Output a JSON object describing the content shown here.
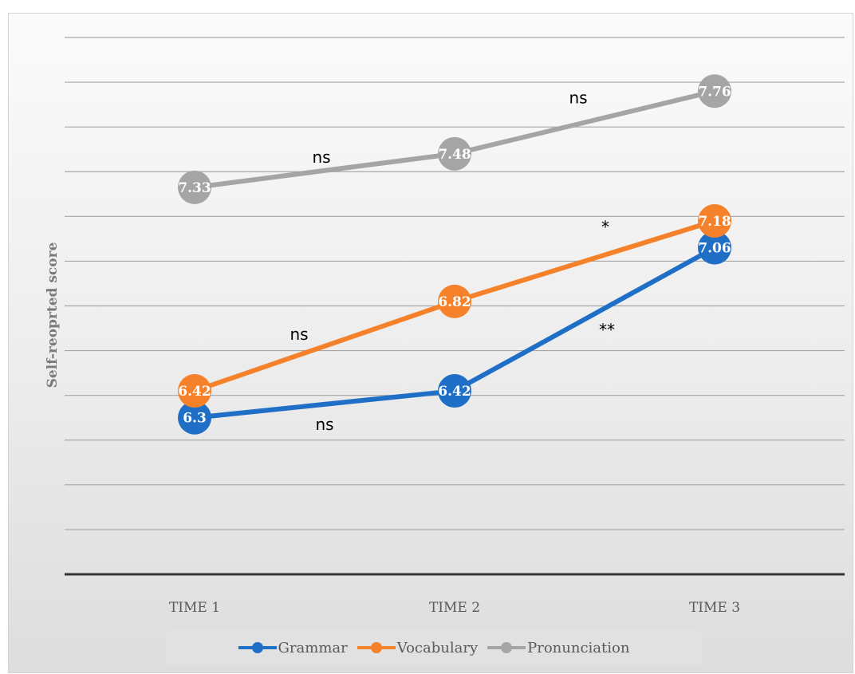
{
  "chart_data": {
    "type": "line",
    "categories": [
      "TIME 1",
      "TIME 2",
      "TIME 3"
    ],
    "series": [
      {
        "name": "Grammar",
        "color": "#1f6fc7",
        "values": [
          6.3,
          6.42,
          7.06
        ],
        "labels": [
          "6.3",
          "6.42",
          "7.06"
        ]
      },
      {
        "name": "Vocabulary",
        "color": "#f5822a",
        "values": [
          6.42,
          6.82,
          7.18
        ],
        "labels": [
          "6.42",
          "6.82",
          "7.18"
        ]
      },
      {
        "name": "Pronunciation",
        "color": "#a5a5a5",
        "values": [
          7.33,
          7.48,
          7.76
        ],
        "labels": [
          "7.33",
          "7.48",
          "7.76"
        ]
      }
    ],
    "annotations": [
      {
        "series": "Grammar",
        "between": [
          "TIME 1",
          "TIME 2"
        ],
        "text": "ns"
      },
      {
        "series": "Grammar",
        "between": [
          "TIME 2",
          "TIME 3"
        ],
        "text": "**"
      },
      {
        "series": "Vocabulary",
        "between": [
          "TIME 1",
          "TIME 2"
        ],
        "text": "ns"
      },
      {
        "series": "Vocabulary",
        "between": [
          "TIME 2",
          "TIME 3"
        ],
        "text": "*"
      },
      {
        "series": "Pronunciation",
        "between": [
          "TIME 1",
          "TIME 2"
        ],
        "text": "ns"
      },
      {
        "series": "Pronunciation",
        "between": [
          "TIME 2",
          "TIME 3"
        ],
        "text": "ns"
      }
    ],
    "title": "",
    "xlabel": "",
    "ylabel": "Self-reoprted score",
    "ylim": [
      5.6,
      8.0
    ],
    "y_gridline_step": 0.2,
    "y_tick_labels_shown": false,
    "grid": true,
    "legend_position": "bottom"
  }
}
